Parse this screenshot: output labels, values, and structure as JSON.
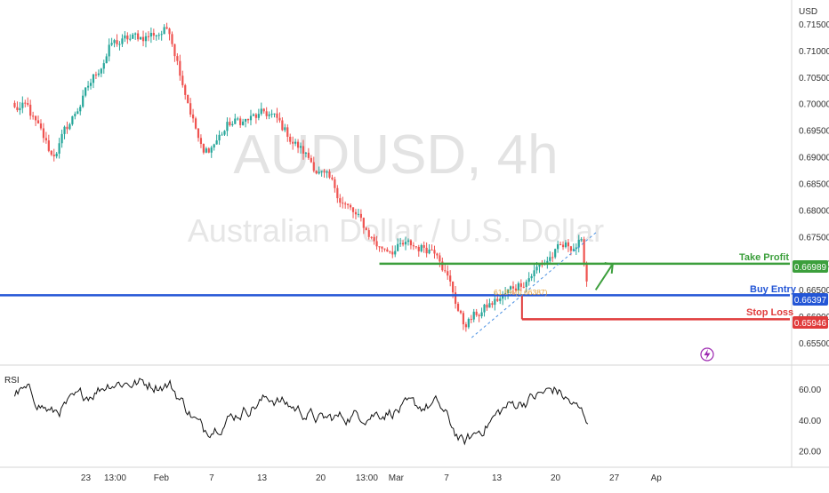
{
  "watermark": {
    "symbol": "AUDUSD, 4h",
    "name": "Australian Dollar / U.S. Dollar"
  },
  "price_axis": {
    "currency": "USD",
    "ticks": [
      "0.71500",
      "0.71000",
      "0.70500",
      "0.70000",
      "0.69500",
      "0.69000",
      "0.68500",
      "0.68000",
      "0.67500",
      "0.67000",
      "0.66500",
      "0.66000",
      "0.65500"
    ]
  },
  "rsi": {
    "label": "RSI",
    "ticks": [
      "60.00",
      "40.00",
      "20.00"
    ]
  },
  "time_axis": {
    "labels": [
      "23",
      "13:00",
      "Feb",
      "7",
      "13",
      "20",
      "13:00",
      "Mar",
      "7",
      "13",
      "20",
      "27",
      "Ap"
    ]
  },
  "levels": {
    "take_profit": {
      "label": "Take Profit",
      "price": "0.66989",
      "color": "#3c9f3c"
    },
    "buy_entry": {
      "label": "Buy Entry",
      "price": "0.66397",
      "color": "#2456d6"
    },
    "stop_loss": {
      "label": "Stop Loss",
      "price": "0.65946",
      "color": "#e03b3b"
    }
  },
  "fib_label": "61.8%(0.66387)",
  "colors": {
    "up": "#26a69a",
    "down": "#ef5350",
    "rsi_line": "#111111"
  },
  "chart_data": {
    "type": "candlestick",
    "symbol": "AUDUSD",
    "timeframe": "4h",
    "ylim": [
      0.651,
      0.7195
    ],
    "rsi_ylim": [
      10,
      75
    ],
    "key_closes": [
      {
        "x": "Jan 16",
        "y": 0.699
      },
      {
        "x": "Jan 19",
        "y": 0.69
      },
      {
        "x": "Jan 26",
        "y": 0.711
      },
      {
        "x": "Feb 2",
        "y": 0.714
      },
      {
        "x": "Feb 6",
        "y": 0.69
      },
      {
        "x": "Feb 9",
        "y": 0.696
      },
      {
        "x": "Feb 14",
        "y": 0.698
      },
      {
        "x": "Feb 20",
        "y": 0.687
      },
      {
        "x": "Feb 27",
        "y": 0.673
      },
      {
        "x": "Mar 6",
        "y": 0.673
      },
      {
        "x": "Mar 9",
        "y": 0.6585
      },
      {
        "x": "Mar 14",
        "y": 0.664
      },
      {
        "x": "Mar 20",
        "y": 0.672
      },
      {
        "x": "Mar 23",
        "y": 0.674
      },
      {
        "x": "Mar 24",
        "y": 0.664
      }
    ],
    "rsi_key_values": [
      {
        "x": "Jan 16",
        "y": 58
      },
      {
        "x": "Jan 19",
        "y": 44
      },
      {
        "x": "Jan 26",
        "y": 65
      },
      {
        "x": "Feb 2",
        "y": 63
      },
      {
        "x": "Feb 6",
        "y": 33
      },
      {
        "x": "Feb 14",
        "y": 55
      },
      {
        "x": "Feb 20",
        "y": 40
      },
      {
        "x": "Mar 6",
        "y": 50
      },
      {
        "x": "Mar 9",
        "y": 24
      },
      {
        "x": "Mar 14",
        "y": 48
      },
      {
        "x": "Mar 20",
        "y": 60
      },
      {
        "x": "Mar 24",
        "y": 40
      }
    ]
  }
}
